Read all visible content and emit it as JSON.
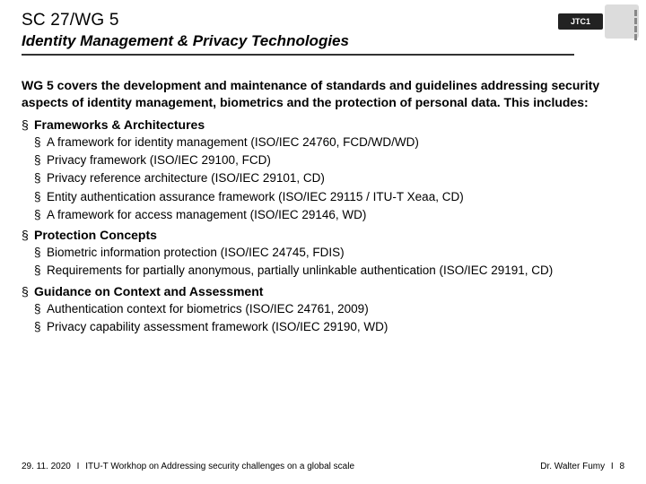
{
  "header": {
    "line1": "SC 27/WG 5",
    "line2": "Identity Management & Privacy Technologies",
    "logo_text": "JTC1",
    "underline_color": "#333333"
  },
  "intro": "WG 5 covers the development and maintenance of standards and guidelines addressing security aspects of identity management, biometrics and the protection of personal data. This includes:",
  "sections": [
    {
      "title": "Frameworks & Architectures",
      "items": [
        "A framework for identity management (ISO/IEC 24760, FCD/WD/WD)",
        "Privacy framework (ISO/IEC 29100, FCD)",
        "Privacy reference architecture (ISO/IEC 29101, CD)",
        "Entity authentication assurance framework (ISO/IEC 29115 / ITU-T Xeaa, CD)",
        "A framework for access management (ISO/IEC 29146, WD)"
      ]
    },
    {
      "title": "Protection Concepts",
      "items": [
        "Biometric information protection (ISO/IEC 24745, FDIS)",
        "Requirements for partially anonymous, partially unlinkable authentication (ISO/IEC 29191, CD)"
      ]
    },
    {
      "title": "Guidance on Context and Assessment",
      "items": [
        "Authentication context for biometrics (ISO/IEC 24761, 2009)",
        "Privacy capability assessment framework (ISO/IEC 29190, WD)"
      ]
    }
  ],
  "footer": {
    "date": "29. 11. 2020",
    "event": "ITU-T Workhop on Addressing security challenges on a global scale",
    "author": "Dr. Walter Fumy",
    "page": "8"
  },
  "colors": {
    "text": "#000000",
    "background": "#ffffff",
    "underline": "#333333"
  },
  "fonts": {
    "title1_size": 19,
    "title2_size": 17,
    "intro_size": 14,
    "section_title_size": 14,
    "item_size": 13.5,
    "footer_size": 10
  }
}
